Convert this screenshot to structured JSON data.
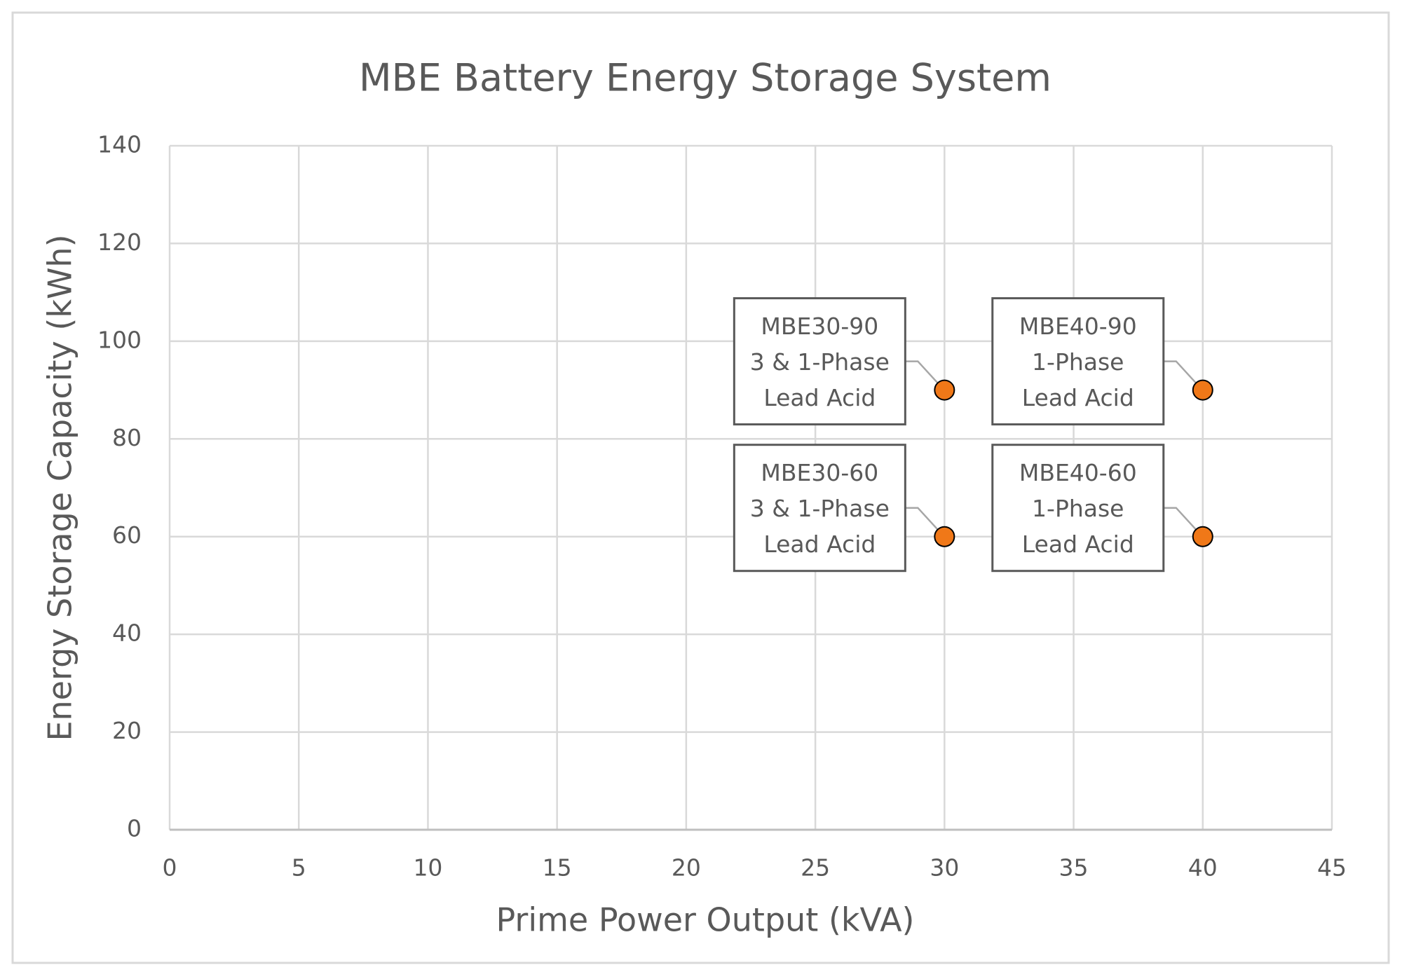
{
  "chart_data": {
    "type": "scatter",
    "title": "MBE Battery Energy Storage System",
    "x_label": "Prime Power Output (kVA)",
    "y_label": "Energy Storage Capacity (kWh)",
    "x": [
      30,
      40,
      30,
      40
    ],
    "series": [
      {
        "color": "#f07818",
        "values": [
          90,
          90,
          60,
          60
        ]
      }
    ],
    "point_labels": [
      [
        "MBE30-90",
        "3 & 1-Phase",
        "Lead Acid"
      ],
      [
        "MBE40-90",
        "1-Phase",
        "Lead Acid"
      ],
      [
        "MBE30-60",
        "3 & 1-Phase",
        "Lead Acid"
      ],
      [
        "MBE40-60",
        "1-Phase",
        "Lead Acid"
      ]
    ],
    "xlim": [
      0,
      45
    ],
    "xticks": [
      0,
      5,
      10,
      15,
      20,
      25,
      30,
      35,
      40,
      45
    ],
    "ylim": [
      0,
      140
    ],
    "yticks": [
      0,
      20,
      40,
      60,
      80,
      100,
      120,
      140
    ],
    "grid": true
  }
}
